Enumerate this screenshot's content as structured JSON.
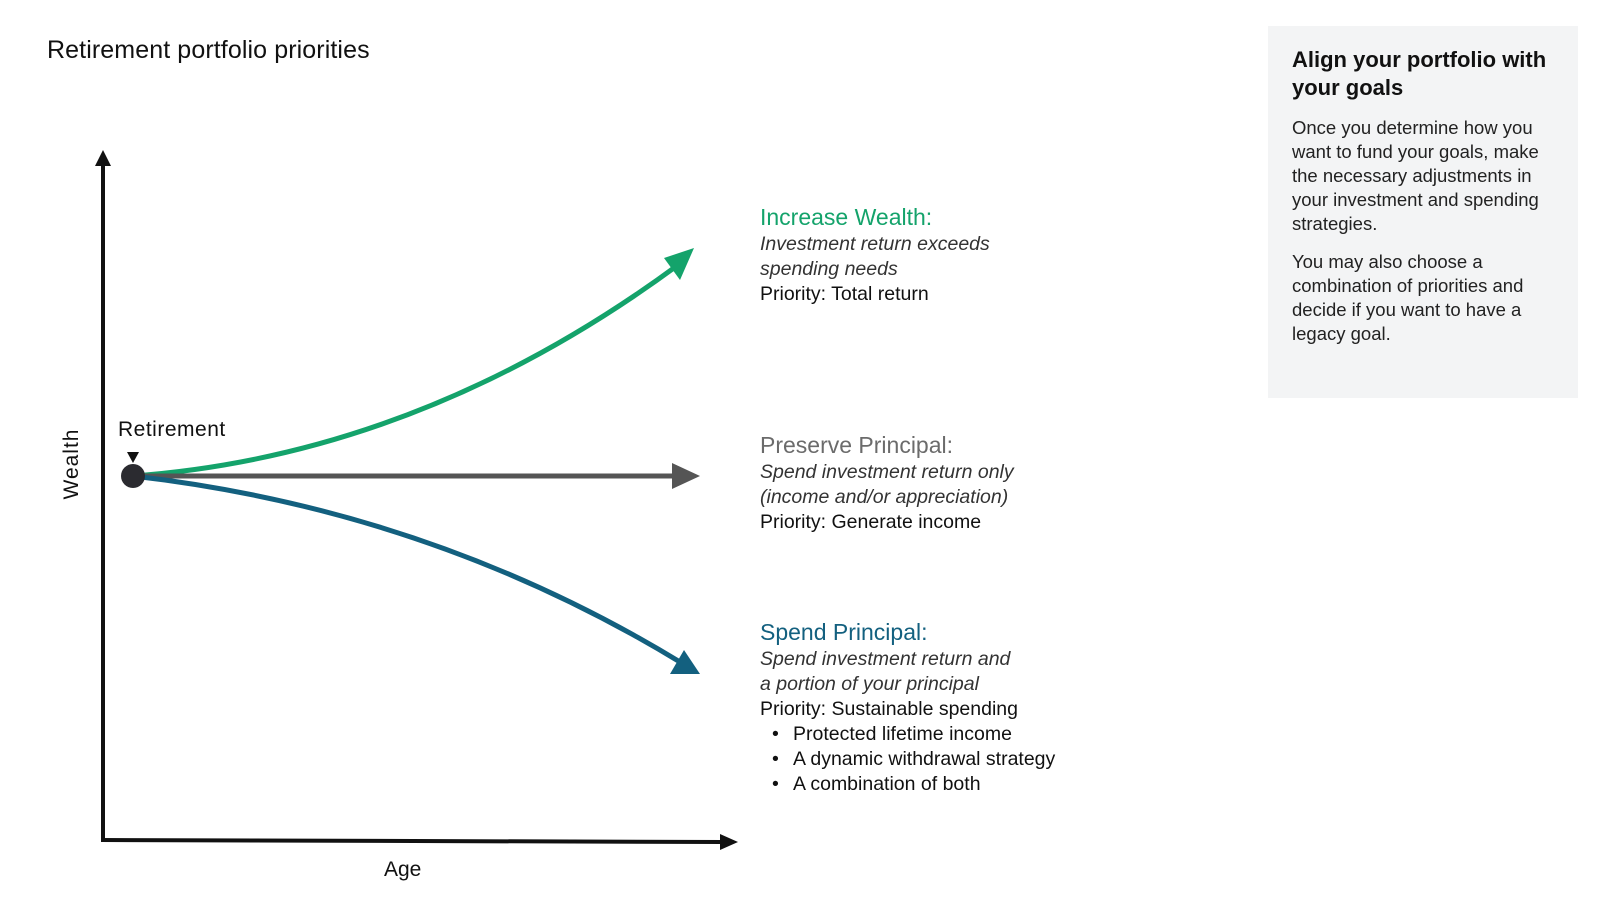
{
  "title": "Retirement portfolio priorities",
  "axes": {
    "y_label": "Wealth",
    "x_label": "Age"
  },
  "retirement_label": "Retirement",
  "colors": {
    "increase": "#14a36b",
    "preserve": "#555555",
    "spend": "#13607f",
    "axis": "#111111",
    "panel_bg": "#f3f4f5"
  },
  "scenarios": [
    {
      "heading": "Increase Wealth:",
      "description_1": "Investment return exceeds",
      "description_2": "spending needs",
      "priority": "Priority: Total return",
      "trend": "up"
    },
    {
      "heading": "Preserve Principal:",
      "description_1": "Spend investment return only",
      "description_2": "(income and/or appreciation)",
      "priority": "Priority: Generate income",
      "trend": "flat"
    },
    {
      "heading": "Spend Principal:",
      "description_1": "Spend investment return and",
      "description_2": "a portion of your principal",
      "priority": "Priority: Sustainable spending",
      "trend": "down",
      "bullets": [
        "Protected lifetime income",
        "A dynamic withdrawal strategy",
        "A combination of both"
      ]
    }
  ],
  "panel": {
    "title": "Align your portfolio with your goals",
    "paragraph_1": "Once you determine how you want to fund your goals, make the necessary adjustments in your investment and spending strategies.",
    "paragraph_2": "You may also choose a combination of priorities and decide if you want to have a legacy goal."
  }
}
